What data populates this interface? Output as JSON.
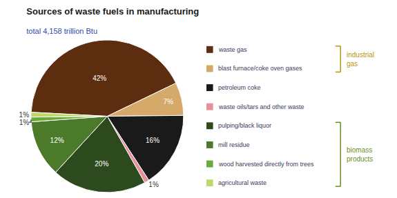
{
  "chart_data": {
    "type": "pie",
    "title": "Sources of waste fuels in manufacturing",
    "subtitle": "total 4,158 trillion Btu",
    "categories": [
      "waste gas",
      "blast furnace/coke oven gases",
      "petroleum coke",
      "waste oils/tars and other waste",
      "pulping/black liquor",
      "mill residue",
      "wood harvested directly from trees",
      "agricultural waste"
    ],
    "values": [
      42,
      7,
      16,
      1,
      20,
      12,
      1,
      1
    ],
    "value_labels": [
      "42%",
      "7%",
      "16%",
      "1%",
      "20%",
      "12%",
      "1%",
      "1%"
    ],
    "colors": [
      "#5c2d0e",
      "#d4a96a",
      "#1a1a1a",
      "#e8909a",
      "#2d4a1e",
      "#4a7a2a",
      "#6aaa3a",
      "#bcd96a"
    ],
    "data_labels": true,
    "legend": "right",
    "annotations": [
      {
        "text": "industrial\ngas",
        "color": "#b8960c",
        "members": [
          "waste gas",
          "blast furnace/coke oven gases"
        ]
      },
      {
        "text": "biomass\nproducts",
        "color": "#6b8e23",
        "members": [
          "pulping/black liquor",
          "mill residue",
          "wood harvested directly from trees",
          "agricultural waste"
        ]
      }
    ]
  }
}
